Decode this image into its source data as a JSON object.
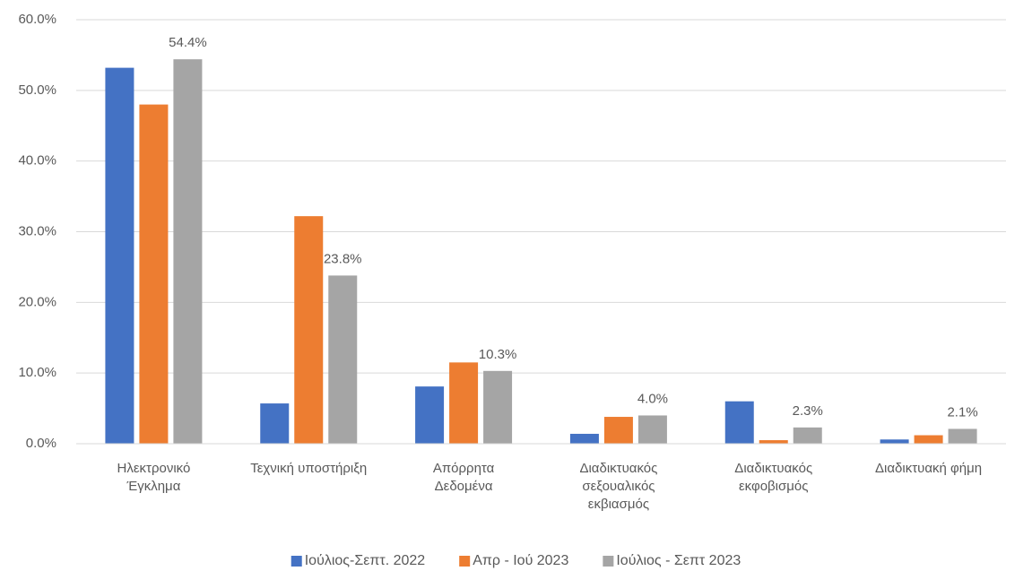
{
  "chart_data": {
    "type": "bar",
    "categories": [
      "Ηλεκτρονικό\nΈγκλημα",
      "Τεχνική υποστήριξη",
      "Απόρρητα\nΔεδομένα",
      "Διαδικτυακός\nσεξουαλικός\nεκβιασμός",
      "Διαδικτυακός\nεκφοβισμός",
      "Διαδικτυακή φήμη"
    ],
    "series": [
      {
        "name": "Ιούλιος-Σεπτ. 2022",
        "color": "#4472c4",
        "values": [
          53.2,
          5.7,
          8.1,
          1.4,
          6.0,
          0.6
        ]
      },
      {
        "name": "Απρ - Ιού 2023",
        "color": "#ed7d31",
        "values": [
          48.0,
          32.2,
          11.5,
          3.8,
          0.5,
          1.2
        ]
      },
      {
        "name": "Ιούλιος - Σεπτ 2023",
        "color": "#a5a5a5",
        "values": [
          54.4,
          23.8,
          10.3,
          4.0,
          2.3,
          2.1
        ],
        "value_labels": [
          "54.4%",
          "23.8%",
          "10.3%",
          "4.0%",
          "2.3%",
          "2.1%"
        ]
      }
    ],
    "ylim": [
      0,
      60
    ],
    "yticks": [
      {
        "value": 0,
        "label": "0.0%"
      },
      {
        "value": 10,
        "label": "10.0%"
      },
      {
        "value": 20,
        "label": "20.0%"
      },
      {
        "value": 30,
        "label": "30.0%"
      },
      {
        "value": 40,
        "label": "40.0%"
      },
      {
        "value": 50,
        "label": "50.0%"
      },
      {
        "value": 60,
        "label": "60.0%"
      }
    ],
    "grid": true,
    "legend": "bottom"
  }
}
